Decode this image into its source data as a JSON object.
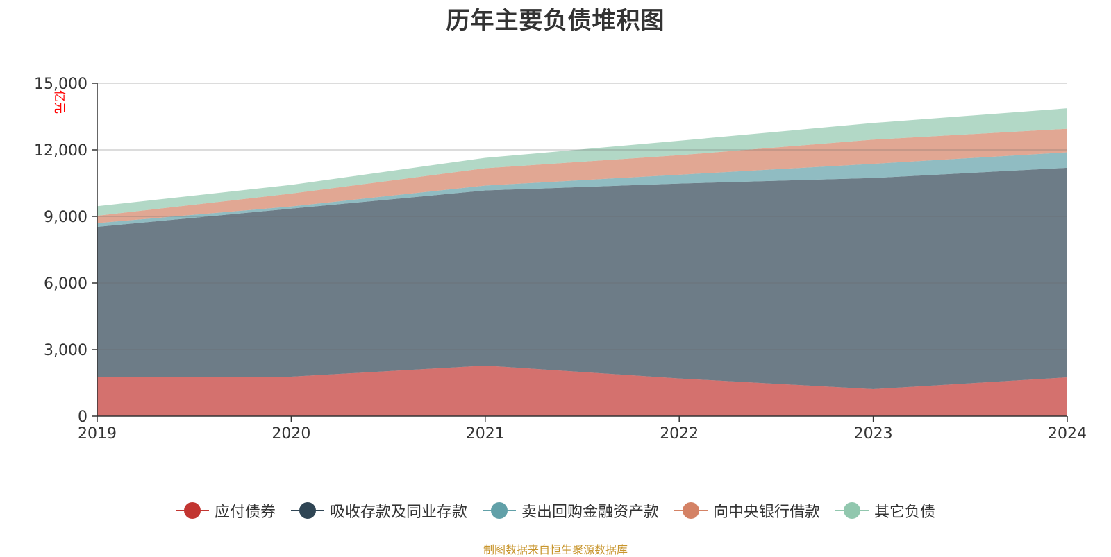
{
  "chart_data": {
    "type": "area",
    "stacked": true,
    "title": "历年主要负债堆积图",
    "unit_label": "亿元",
    "categories": [
      "2019",
      "2020",
      "2021",
      "2022",
      "2023",
      "2024"
    ],
    "ylim": [
      0,
      15000
    ],
    "y_ticks": [
      0,
      3000,
      6000,
      9000,
      12000,
      15000
    ],
    "y_tick_labels": [
      "0",
      "3,000",
      "6,000",
      "9,000",
      "12,000",
      "15,000"
    ],
    "grid": true,
    "legend_position": "bottom",
    "series": [
      {
        "name": "应付债券",
        "color": "#c23531",
        "values": [
          1750,
          1780,
          2280,
          1700,
          1220,
          1750
        ]
      },
      {
        "name": "吸收存款及同业存款",
        "color": "#2f4554",
        "values": [
          6780,
          7570,
          7890,
          8780,
          9510,
          9440
        ]
      },
      {
        "name": "卖出回购金融资产款",
        "color": "#61a0a8",
        "values": [
          170,
          100,
          220,
          400,
          640,
          700
        ]
      },
      {
        "name": "向中央银行借款",
        "color": "#d48265",
        "values": [
          330,
          580,
          780,
          880,
          1090,
          1060
        ]
      },
      {
        "name": "其它负债",
        "color": "#91c7ae",
        "values": [
          430,
          390,
          470,
          650,
          750,
          920
        ]
      }
    ]
  },
  "source_note": "制图数据来自恒生聚源数据库"
}
